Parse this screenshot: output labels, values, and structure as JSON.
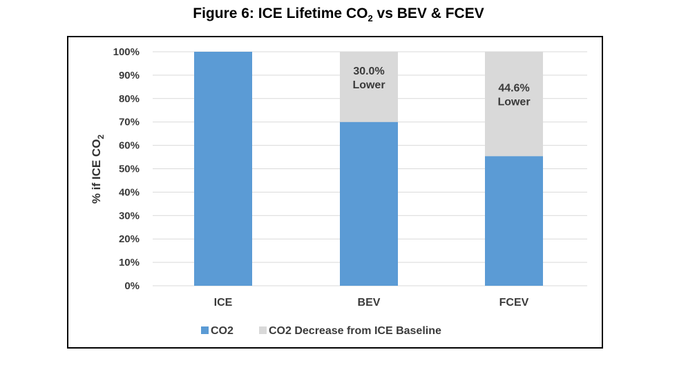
{
  "figure": {
    "title_main": "Figure 6:  ICE Lifetime CO",
    "title_sub": "2",
    "title_rest": " vs BEV & FCEV"
  },
  "chart_data": {
    "type": "bar",
    "stacked": true,
    "categories": [
      "ICE",
      "BEV",
      "FCEV"
    ],
    "series": [
      {
        "name": "CO2",
        "values": [
          100,
          70.0,
          55.4
        ],
        "color": "#5b9bd5"
      },
      {
        "name": "CO2 Decrease from ICE Baseline",
        "values": [
          0,
          30.0,
          44.6
        ],
        "color": "#d9d9d9"
      }
    ],
    "data_labels": [
      {
        "category": "BEV",
        "lines": [
          "30.0%",
          "Lower"
        ]
      },
      {
        "category": "FCEV",
        "lines": [
          "44.6%",
          "Lower"
        ]
      }
    ],
    "ylabel": "% if ICE CO",
    "ylabel_sub": "2",
    "ylim": [
      0,
      100
    ],
    "yticks": [
      0,
      10,
      20,
      30,
      40,
      50,
      60,
      70,
      80,
      90,
      100
    ],
    "ytick_labels": [
      "0%",
      "10%",
      "20%",
      "30%",
      "40%",
      "50%",
      "60%",
      "70%",
      "80%",
      "90%",
      "100%"
    ],
    "grid": true,
    "gridline_color": "#d9d9d9",
    "legend_position": "bottom"
  }
}
